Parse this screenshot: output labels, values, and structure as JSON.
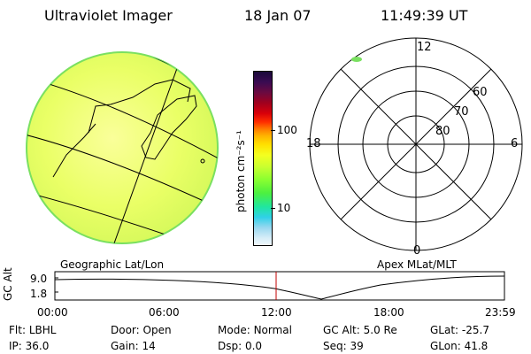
{
  "header": {
    "title": "Ultraviolet Imager",
    "date": "18 Jan 07",
    "time": "11:49:39 UT"
  },
  "left_map": {
    "label": "Geographic Lat/Lon"
  },
  "colorbar": {
    "unit_label": "photon cm⁻²s⁻¹",
    "ticks": [
      "100",
      "10"
    ],
    "colors_top_to_bottom": [
      "#1a0a3a",
      "#3a0b52",
      "#6a0a40",
      "#a0001e",
      "#d8000a",
      "#ff2e00",
      "#ff7a00",
      "#ffb400",
      "#ffe000",
      "#f4ff20",
      "#c8ff30",
      "#8cff30",
      "#4cf040",
      "#20e6a0",
      "#30d0e8",
      "#9ad8f0",
      "#d8eef8"
    ]
  },
  "polar": {
    "label": "Apex MLat/MLT",
    "mlt_labels": {
      "top": "12",
      "left": "18",
      "right": "6",
      "bottom": "0"
    },
    "lat_labels": [
      "60",
      "70",
      "80"
    ]
  },
  "timeline": {
    "ylabel": "GC Alt",
    "yticks": [
      "9.0",
      "1.8"
    ],
    "xticks": [
      "00:00",
      "06:00",
      "12:00",
      "18:00",
      "23:59"
    ]
  },
  "footer": {
    "row1": [
      {
        "k": "Flt:",
        "v": "LBHL"
      },
      {
        "k": "Door:",
        "v": "Open"
      },
      {
        "k": "Mode:",
        "v": "Normal"
      },
      {
        "k": "GC Alt:",
        "v": "5.0 Re"
      },
      {
        "k": "GLat:",
        "v": "-25.7"
      }
    ],
    "row2": [
      {
        "k": "IP:",
        "v": "36.0"
      },
      {
        "k": "Gain:",
        "v": "14"
      },
      {
        "k": "Dsp:",
        "v": "0.0"
      },
      {
        "k": "Seq:",
        "v": "39"
      },
      {
        "k": "GLon:",
        "v": "41.8"
      }
    ]
  }
}
